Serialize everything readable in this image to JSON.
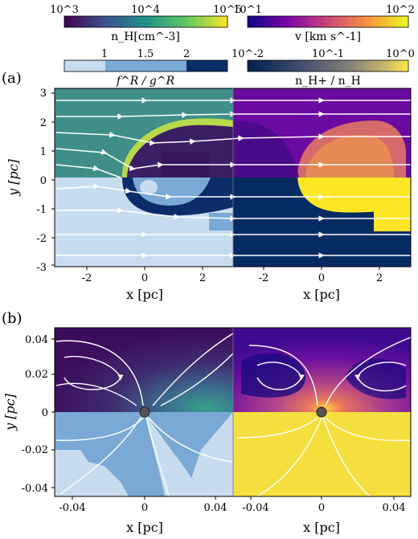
{
  "figure": {
    "colorbars": [
      {
        "id": "density",
        "label": "n_H[cm^-3]",
        "ticks": [
          "10^3",
          "10^4",
          "10^5"
        ],
        "scale": "log",
        "range": [
          1000,
          100000
        ],
        "colormap": "viridis"
      },
      {
        "id": "velocity",
        "label": "v [km s^-1]",
        "ticks": [
          "10^1",
          "10^2"
        ],
        "scale": "log",
        "range": [
          10,
          100
        ],
        "colormap": "plasma"
      },
      {
        "id": "ratio",
        "label": "f^R / g^R",
        "ticks": [
          "1",
          "1.5",
          "2"
        ],
        "scale": "linear",
        "range": [
          0.5,
          2.5
        ],
        "colormap": "blues-discrete"
      },
      {
        "id": "ionization",
        "label": "n_H+ / n_H",
        "ticks": [
          "10^-2",
          "10^-1",
          "10^0"
        ],
        "scale": "log",
        "range": [
          0.01,
          1
        ],
        "colormap": "cividis"
      }
    ],
    "panels": [
      {
        "id": "a",
        "tag": "(a)",
        "ylabel": "y [pc]",
        "xlabel": "x [pc]",
        "yticks": [
          "3",
          "2",
          "1",
          "0",
          "-1",
          "-2",
          "-3"
        ],
        "xticks": [
          "-2",
          "0",
          "2"
        ]
      },
      {
        "id": "b",
        "tag": "(b)",
        "ylabel": "y [pc]",
        "xlabel": "x [pc]",
        "yticks": [
          "0.04",
          "0.02",
          "0",
          "-0.02",
          "-0.04"
        ],
        "xticks": [
          "-0.04",
          "0",
          "0.04"
        ]
      }
    ],
    "colors": {
      "teal": "#3f8f88",
      "navy": "#062b63",
      "purple": "#5f0a9a",
      "yellow": "#fde725",
      "blue_pale": "#c8dcef",
      "blue_mid": "#7aa9d6",
      "blue_dark": "#0a2d6a",
      "orange": "#e0805a"
    }
  }
}
